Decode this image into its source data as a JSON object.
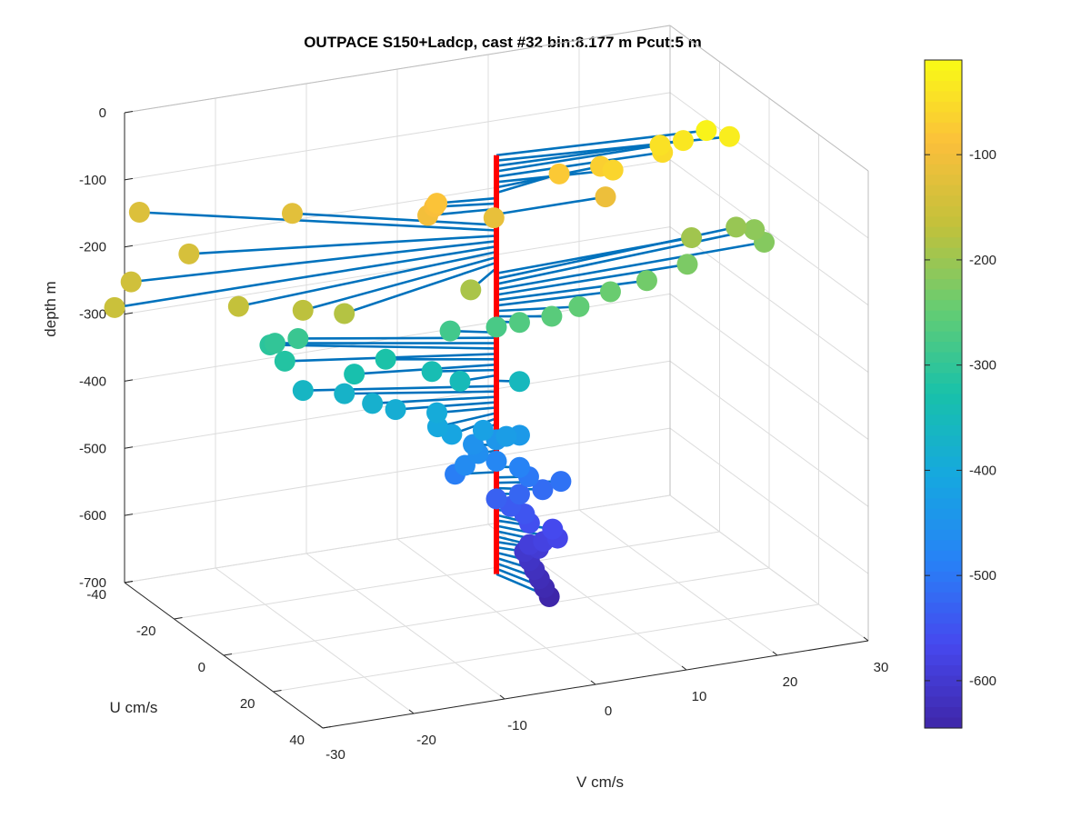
{
  "chart_data": {
    "type": "scatter",
    "title": "OUTPACE S150+Ladcp, cast #32 bin:8.177 m  Pcut:5 m",
    "xlabel": "V cm/s",
    "ylabel": "U cm/s",
    "zlabel": "depth m",
    "xlim": [
      -30,
      30
    ],
    "ylim": [
      -40,
      40
    ],
    "zlim": [
      -700,
      0
    ],
    "x_ticks": [
      "-30",
      "-20",
      "-10",
      "0",
      "10",
      "20",
      "30"
    ],
    "y_ticks": [
      "-40",
      "-20",
      "0",
      "20",
      "40"
    ],
    "z_ticks": [
      "0",
      "-100",
      "-200",
      "-300",
      "-400",
      "-500",
      "-600",
      "-700"
    ],
    "grid": true,
    "colorbar": {
      "colormap": "parula",
      "range": [
        -645,
        -10
      ],
      "ticks": [
        "-100",
        "-200",
        "-300",
        "-400",
        "-500",
        "-600"
      ]
    },
    "stick_color": "#0072BD",
    "reference_line_color": "#FF0000",
    "points": [
      {
        "depth": -20,
        "u": 4,
        "v": 22
      },
      {
        "depth": -28,
        "u": 6,
        "v": 24
      },
      {
        "depth": -36,
        "u": 2,
        "v": 20
      },
      {
        "depth": -44,
        "u": 0,
        "v": 18
      },
      {
        "depth": -52,
        "u": 1,
        "v": 18
      },
      {
        "depth": -60,
        "u": 3,
        "v": 12
      },
      {
        "depth": -68,
        "u": -2,
        "v": 12
      },
      {
        "depth": -76,
        "u": -4,
        "v": 8
      },
      {
        "depth": -84,
        "u": -2,
        "v": -6
      },
      {
        "depth": -92,
        "u": -3,
        "v": -6
      },
      {
        "depth": -100,
        "u": -2,
        "v": -7
      },
      {
        "depth": -108,
        "u": 0,
        "v": 12
      },
      {
        "depth": -116,
        "u": -1,
        "v": 0
      },
      {
        "depth": -124,
        "u": -20,
        "v": -17
      },
      {
        "depth": -132,
        "u": -34,
        "v": -30
      },
      {
        "depth": -140,
        "u": -14,
        "v": -30
      },
      {
        "depth": -148,
        "u": -8,
        "v": -38
      },
      {
        "depth": -156,
        "u": 0,
        "v": -42
      },
      {
        "depth": -164,
        "u": 6,
        "v": -30
      },
      {
        "depth": -172,
        "u": 10,
        "v": -24
      },
      {
        "depth": -180,
        "u": 12,
        "v": -20
      },
      {
        "depth": -188,
        "u": 8,
        "v": -5
      },
      {
        "depth": -196,
        "u": -2,
        "v": 22
      },
      {
        "depth": -204,
        "u": -6,
        "v": 28
      },
      {
        "depth": -212,
        "u": -6,
        "v": 30
      },
      {
        "depth": -220,
        "u": -2,
        "v": 30
      },
      {
        "depth": -228,
        "u": 0,
        "v": 21
      },
      {
        "depth": -236,
        "u": 2,
        "v": 16
      },
      {
        "depth": -244,
        "u": 2,
        "v": 12
      },
      {
        "depth": -252,
        "u": 4,
        "v": 8
      },
      {
        "depth": -260,
        "u": 4,
        "v": 5
      },
      {
        "depth": -268,
        "u": 2,
        "v": 2
      },
      {
        "depth": -276,
        "u": 0,
        "v": 0
      },
      {
        "depth": -284,
        "u": -4,
        "v": -4
      },
      {
        "depth": -292,
        "u": -14,
        "v": -18
      },
      {
        "depth": -300,
        "u": -16,
        "v": -20
      },
      {
        "depth": -308,
        "u": -18,
        "v": -20
      },
      {
        "depth": -316,
        "u": -12,
        "v": -20
      },
      {
        "depth": -324,
        "u": -8,
        "v": -10
      },
      {
        "depth": -332,
        "u": -6,
        "v": -14
      },
      {
        "depth": -340,
        "u": -4,
        "v": -6
      },
      {
        "depth": -348,
        "u": 0,
        "v": -4
      },
      {
        "depth": -356,
        "u": 2,
        "v": 2
      },
      {
        "depth": -364,
        "u": -12,
        "v": -18
      },
      {
        "depth": -372,
        "u": -10,
        "v": -14
      },
      {
        "depth": -380,
        "u": -6,
        "v": -12
      },
      {
        "depth": -388,
        "u": -4,
        "v": -10
      },
      {
        "depth": -396,
        "u": -2,
        "v": -6
      },
      {
        "depth": -404,
        "u": 2,
        "v": -7
      },
      {
        "depth": -412,
        "u": 4,
        "v": -6
      },
      {
        "depth": -420,
        "u": 2,
        "v": -2
      },
      {
        "depth": -428,
        "u": 4,
        "v": 0
      },
      {
        "depth": -436,
        "u": 2,
        "v": 2
      },
      {
        "depth": -444,
        "u": 0,
        "v": 0
      },
      {
        "depth": -452,
        "u": -2,
        "v": -2
      },
      {
        "depth": -460,
        "u": 0,
        "v": -2
      },
      {
        "depth": -468,
        "u": 2,
        "v": -4
      },
      {
        "depth": -476,
        "u": 0,
        "v": 0
      },
      {
        "depth": -484,
        "u": 2,
        "v": 2
      },
      {
        "depth": -492,
        "u": -2,
        "v": -4
      },
      {
        "depth": -500,
        "u": 2,
        "v": 3
      },
      {
        "depth": -508,
        "u": 4,
        "v": 6
      },
      {
        "depth": -516,
        "u": 4,
        "v": 4
      },
      {
        "depth": -524,
        "u": 2,
        "v": 2
      },
      {
        "depth": -532,
        "u": 0,
        "v": 0
      },
      {
        "depth": -540,
        "u": 2,
        "v": 1
      },
      {
        "depth": -548,
        "u": 4,
        "v": 2
      },
      {
        "depth": -556,
        "u": 6,
        "v": 2
      },
      {
        "depth": -564,
        "u": 8,
        "v": 4
      },
      {
        "depth": -572,
        "u": 10,
        "v": 4
      },
      {
        "depth": -580,
        "u": 8,
        "v": 3
      },
      {
        "depth": -588,
        "u": 6,
        "v": 2
      },
      {
        "depth": -596,
        "u": 6,
        "v": 3
      },
      {
        "depth": -604,
        "u": 4,
        "v": 2
      },
      {
        "depth": -612,
        "u": 6,
        "v": 2
      },
      {
        "depth": -620,
        "u": 8,
        "v": 2
      },
      {
        "depth": -628,
        "u": 10,
        "v": 2
      },
      {
        "depth": -636,
        "u": 12,
        "v": 2
      },
      {
        "depth": -644,
        "u": 14,
        "v": 2
      }
    ]
  }
}
